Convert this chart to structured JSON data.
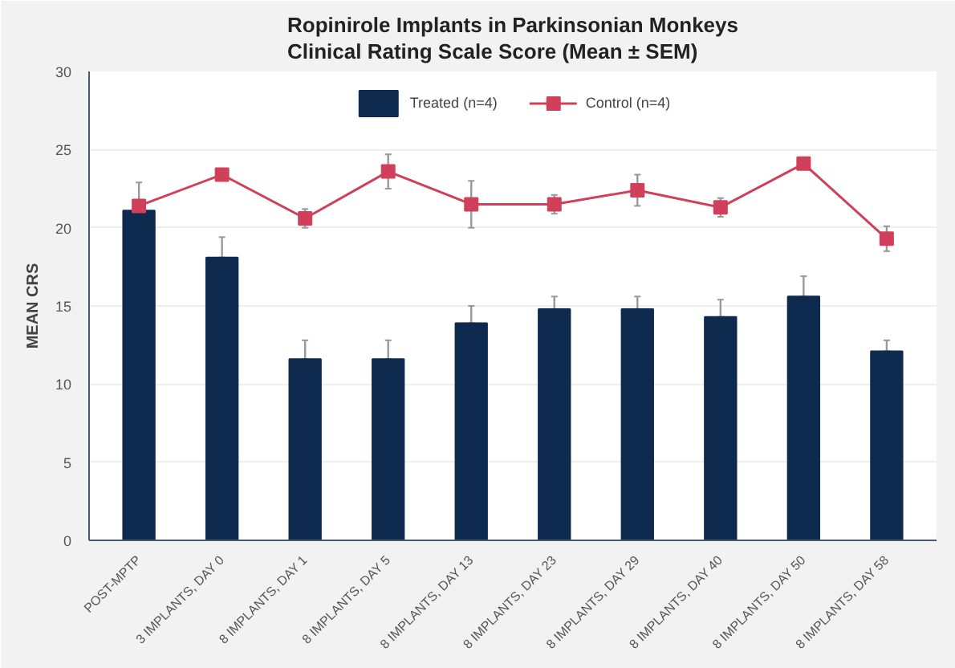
{
  "chart_data": {
    "type": "bar",
    "title": "Ropinirole Implants in Parkinsonian Monkeys\nClinical Rating Scale Score (Mean ± SEM)",
    "ylabel": "MEAN CRS",
    "categories": [
      "POST-MPTP",
      "3 IMPLANTS, DAY 0",
      "8 IMPLANTS, DAY 1",
      "8 IMPLANTS, DAY 5",
      "8 IMPLANTS, DAY 13",
      "8 IMPLANTS, DAY 23",
      "8 IMPLANTS, DAY 29",
      "8 IMPLANTS, DAY 40",
      "8 IMPLANTS, DAY 50",
      "8 IMPLANTS, DAY 58"
    ],
    "series": [
      {
        "name": "Treated (n=4)",
        "color": "#0f2a4f",
        "values": [
          21.1,
          18.1,
          11.6,
          11.6,
          13.9,
          14.8,
          14.8,
          14.3,
          15.6,
          12.1
        ],
        "errors": [
          null,
          1.3,
          1.2,
          1.2,
          1.1,
          0.8,
          0.8,
          1.1,
          1.3,
          0.7
        ]
      },
      {
        "name": "Control (n=4)",
        "type": "line",
        "color": "#d0405a",
        "marker": "square",
        "values": [
          21.4,
          23.4,
          20.6,
          23.6,
          21.5,
          21.5,
          22.4,
          21.3,
          24.1,
          19.3
        ],
        "errors": [
          1.5,
          null,
          0.6,
          1.1,
          1.5,
          0.6,
          1.0,
          0.6,
          null,
          0.8
        ]
      }
    ],
    "ylim": [
      0,
      30
    ],
    "yticks": [
      0,
      5,
      10,
      15,
      20,
      25,
      30
    ],
    "grid": "y",
    "legend": "top"
  }
}
